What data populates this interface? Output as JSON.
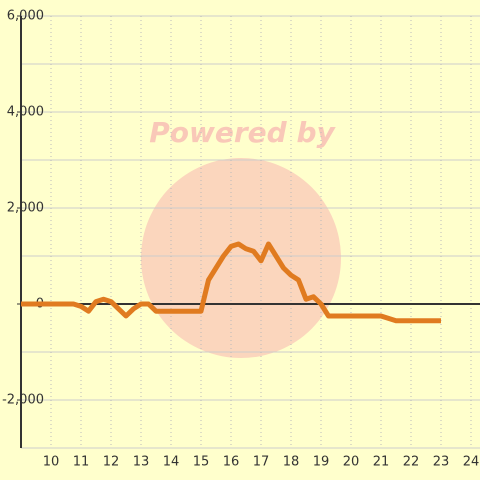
{
  "chart_data": {
    "type": "line",
    "annotation": "Powered by",
    "x": [
      9,
      10,
      10.75,
      11,
      11.25,
      11.5,
      11.75,
      12,
      12.25,
      12.5,
      12.75,
      13,
      13.25,
      13.5,
      14,
      14.5,
      15,
      15.25,
      15.5,
      15.75,
      16,
      16.25,
      16.5,
      16.75,
      17,
      17.25,
      17.5,
      17.75,
      18,
      18.25,
      18.5,
      18.75,
      19,
      19.25,
      19.5,
      20,
      20.5,
      21,
      21.25,
      21.5,
      22,
      22.5,
      23
    ],
    "series": [
      {
        "color": "#e07b20",
        "values": [
          0,
          0,
          0,
          -50,
          -150,
          50,
          100,
          50,
          -100,
          -250,
          -100,
          0,
          0,
          -150,
          -150,
          -150,
          -150,
          500,
          750,
          1000,
          1200,
          1250,
          1150,
          1100,
          900,
          1250,
          1000,
          750,
          600,
          500,
          100,
          150,
          0,
          -250,
          -250,
          -250,
          -250,
          -250,
          -300,
          -350,
          -350,
          -350,
          -350
        ]
      }
    ],
    "xlim": [
      9,
      24.4
    ],
    "ylim": [
      -3000,
      6000
    ],
    "xticks": [
      10,
      11,
      12,
      13,
      14,
      15,
      16,
      17,
      18,
      19,
      20,
      21,
      22,
      23,
      24
    ],
    "yticks": [
      {
        "value": -2000,
        "label": "-2,000"
      },
      0,
      {
        "value": 2000,
        "label": "2,000"
      },
      {
        "value": 4000,
        "label": "4,000"
      },
      {
        "value": 6000,
        "label": "6,000"
      }
    ],
    "y_minor_ticks": [
      -3000,
      -1000,
      1000,
      3000,
      5000
    ],
    "grid": true
  }
}
